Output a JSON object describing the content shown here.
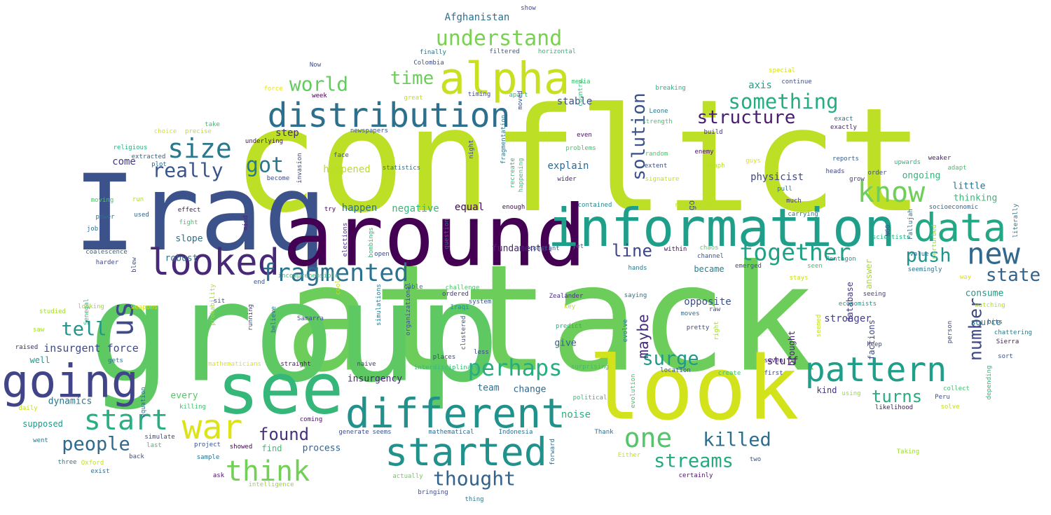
{
  "words": [
    {
      "t": "conflict",
      "c": "#bddf26",
      "a": 0
    },
    {
      "t": "attack",
      "c": "#6ccd5a",
      "a": 0
    },
    {
      "t": "group",
      "c": "#5ec962",
      "a": 0
    },
    {
      "t": "Iraq",
      "c": "#3b528b",
      "a": 0
    },
    {
      "t": "around",
      "c": "#440154",
      "a": 0
    },
    {
      "t": "look",
      "c": "#d2e21b",
      "a": 0
    },
    {
      "t": "see",
      "c": "#35b779",
      "a": 0
    },
    {
      "t": "information",
      "c": "#1f9e89",
      "a": 0
    },
    {
      "t": "alpha",
      "c": "#c8e020",
      "a": 0
    },
    {
      "t": "distribution",
      "c": "#2d708e",
      "a": 0
    },
    {
      "t": "different",
      "c": "#21918c",
      "a": 0
    },
    {
      "t": "data",
      "c": "#22a884",
      "a": 0
    },
    {
      "t": "looked",
      "c": "#482878",
      "a": 0
    },
    {
      "t": "going",
      "c": "#414487",
      "a": 0
    },
    {
      "t": "started",
      "c": "#21918c",
      "a": 0
    },
    {
      "t": "pattern",
      "c": "#1f9e89",
      "a": 0
    },
    {
      "t": "war",
      "c": "#dde318",
      "a": 0
    },
    {
      "t": "start",
      "c": "#29af7f",
      "a": 0
    },
    {
      "t": "new",
      "c": "#31688e",
      "a": 0
    },
    {
      "t": "one",
      "c": "#54c568",
      "a": 0
    },
    {
      "t": "think",
      "c": "#73d056",
      "a": 0
    },
    {
      "t": "fragmented",
      "c": "#2c728e",
      "a": 0
    },
    {
      "t": "know",
      "c": "#6ece58",
      "a": 0
    },
    {
      "t": "understand",
      "c": "#7ad151",
      "a": 0
    },
    {
      "t": "us",
      "c": "#3e4a89",
      "a": 90
    },
    {
      "t": "size",
      "c": "#2a788e",
      "a": 0
    },
    {
      "t": "together",
      "c": "#1fa187",
      "a": 0
    },
    {
      "t": "perhaps",
      "c": "#26ad81",
      "a": 0
    },
    {
      "t": "time",
      "c": "#6ccd5a",
      "a": 0
    },
    {
      "t": "world",
      "c": "#63cb5f",
      "a": 0
    },
    {
      "t": "got",
      "c": "#2a788e",
      "a": 0
    },
    {
      "t": "really",
      "c": "#3a548c",
      "a": 0
    },
    {
      "t": "people",
      "c": "#306a8e",
      "a": 0
    },
    {
      "t": "streams",
      "c": "#24aa83",
      "a": 0
    },
    {
      "t": "thought",
      "c": "#33638d",
      "a": 0
    },
    {
      "t": "something",
      "c": "#25ac82",
      "a": 0
    },
    {
      "t": "structure",
      "c": "#481d6f",
      "a": 0
    },
    {
      "t": "solution",
      "c": "#3b528b",
      "a": 90
    },
    {
      "t": "killed",
      "c": "#2e6d8e",
      "a": 0
    },
    {
      "t": "surge",
      "c": "#1f998a",
      "a": 0
    },
    {
      "t": "push",
      "c": "#20938c",
      "a": 0
    },
    {
      "t": "state",
      "c": "#33638d",
      "a": 0
    },
    {
      "t": "number",
      "c": "#3e4989",
      "a": 90
    },
    {
      "t": "tell",
      "c": "#1f968b",
      "a": 0
    },
    {
      "t": "line",
      "c": "#3f4788",
      "a": 0
    },
    {
      "t": "found",
      "c": "#46327e",
      "a": 0
    },
    {
      "t": "turns",
      "c": "#27ad81",
      "a": 0
    },
    {
      "t": "maybe",
      "c": "#472d7b",
      "a": 90
    },
    {
      "t": "insurgent force",
      "c": "#3e4989",
      "a": 0
    },
    {
      "t": "Afghanistan",
      "c": "#2c718e",
      "a": 0
    },
    {
      "t": "fundamental",
      "c": "#482475",
      "a": 0
    },
    {
      "t": "insurgency",
      "c": "#482475",
      "a": 0
    },
    {
      "t": "stuff",
      "c": "#481a6c",
      "a": 0
    },
    {
      "t": "physicist",
      "c": "#3f4788",
      "a": 0
    },
    {
      "t": "stronger",
      "c": "#433e85",
      "a": 0
    },
    {
      "t": "opposite",
      "c": "#3c508b",
      "a": 0
    },
    {
      "t": "explain",
      "c": "#31688e",
      "a": 0
    },
    {
      "t": "stable",
      "c": "#3b528b",
      "a": 0
    },
    {
      "t": "negative",
      "c": "#35b779",
      "a": 0
    },
    {
      "t": "equal",
      "c": "#450457",
      "a": 0
    },
    {
      "t": "happen",
      "c": "#2d708e",
      "a": 0
    },
    {
      "t": "happened",
      "c": "#bade28",
      "a": 0
    },
    {
      "t": "noise",
      "c": "#2db27d",
      "a": 0
    },
    {
      "t": "source",
      "c": "#26828e",
      "a": 0
    },
    {
      "t": "consume",
      "c": "#1f9a8a",
      "a": 0
    },
    {
      "t": "thinking",
      "c": "#3aba76",
      "a": 0
    },
    {
      "t": "little",
      "c": "#2c728e",
      "a": 0
    },
    {
      "t": "ongoing",
      "c": "#31b57b",
      "a": 0
    },
    {
      "t": "axis",
      "c": "#1fa088",
      "a": 0
    },
    {
      "t": "step",
      "c": "#46307e",
      "a": 0
    },
    {
      "t": "come",
      "c": "#443a83",
      "a": 0
    },
    {
      "t": "dynamics",
      "c": "#2a768e",
      "a": 0
    },
    {
      "t": "supposed",
      "c": "#1f988b",
      "a": 0
    },
    {
      "t": "well",
      "c": "#1e9c89",
      "a": 0
    },
    {
      "t": "every",
      "c": "#58c765",
      "a": 0
    },
    {
      "t": "change",
      "c": "#31678e",
      "a": 0
    },
    {
      "t": "team",
      "c": "#2d718e",
      "a": 0
    },
    {
      "t": "give",
      "c": "#355f8d",
      "a": 0
    },
    {
      "t": "became",
      "c": "#277f8e",
      "a": 0
    },
    {
      "t": "slope",
      "c": "#2d708e",
      "a": 0
    },
    {
      "t": "robust",
      "c": "#2a778e",
      "a": 0
    },
    {
      "t": "process",
      "c": "#33638d",
      "a": 0
    },
    {
      "t": "find",
      "c": "#40bd72",
      "a": 0
    },
    {
      "t": "kind",
      "c": "#463480",
      "a": 0
    },
    {
      "t": "factions",
      "c": "#3f4889",
      "a": 90
    },
    {
      "t": "answer",
      "c": "#a8db34",
      "a": 90
    },
    {
      "t": "database",
      "c": "#443983",
      "a": 90
    },
    {
      "t": "brought",
      "c": "#482071",
      "a": 90
    },
    {
      "t": "go",
      "c": "#3d4e8a",
      "a": 90
    },
    {
      "t": "Now",
      "c": "#3e4c8a",
      "a": 0
    },
    {
      "t": "Colombia",
      "c": "#3c4f8a",
      "a": 0
    },
    {
      "t": "finally",
      "c": "#2c728e",
      "a": 0
    },
    {
      "t": "horizontal",
      "c": "#34b679",
      "a": 0
    },
    {
      "t": "filtered",
      "c": "#375b8d",
      "a": 0
    },
    {
      "t": "show",
      "c": "#3e4a89",
      "a": 0
    },
    {
      "t": "special",
      "c": "#d8e219",
      "a": 0
    },
    {
      "t": "continue",
      "c": "#3d4e8a",
      "a": 0
    },
    {
      "t": "media",
      "c": "#42be71",
      "a": 0
    },
    {
      "t": "force",
      "c": "#e5e419",
      "a": 0
    },
    {
      "t": "week",
      "c": "#440154",
      "a": 0
    },
    {
      "t": "great",
      "c": "#c0df25",
      "a": 0
    },
    {
      "t": "timing",
      "c": "#3f4788",
      "a": 0
    },
    {
      "t": "apart",
      "c": "#31b57b",
      "a": 0
    },
    {
      "t": "breaking",
      "c": "#2ab07f",
      "a": 0
    },
    {
      "t": "Leone",
      "c": "#2a768e",
      "a": 0
    },
    {
      "t": "exact",
      "c": "#2c738e",
      "a": 0
    },
    {
      "t": "exactly",
      "c": "#482677",
      "a": 0
    },
    {
      "t": "strength",
      "c": "#4ac16d",
      "a": 0
    },
    {
      "t": "take",
      "c": "#40bd72",
      "a": 0
    },
    {
      "t": "choice",
      "c": "#dae319",
      "a": 0
    },
    {
      "t": "precise",
      "c": "#c5e021",
      "a": 0
    },
    {
      "t": "underlying",
      "c": "#471063",
      "a": 0
    },
    {
      "t": "newspapers",
      "c": "#3b528b",
      "a": 0
    },
    {
      "t": "even",
      "c": "#460b5e",
      "a": 0
    },
    {
      "t": "build",
      "c": "#46307e",
      "a": 0
    },
    {
      "t": "problems",
      "c": "#4ac16d",
      "a": 0
    },
    {
      "t": "random",
      "c": "#52c569",
      "a": 0
    },
    {
      "t": "enemy",
      "c": "#481769",
      "a": 0
    },
    {
      "t": "reports",
      "c": "#355e8d",
      "a": 0
    },
    {
      "t": "religious",
      "c": "#2ab07f",
      "a": 0
    },
    {
      "t": "extracted",
      "c": "#33628d",
      "a": 0
    },
    {
      "t": "face",
      "c": "#3a548c",
      "a": 0
    },
    {
      "t": "statistics",
      "c": "#2c728e",
      "a": 0
    },
    {
      "t": "extent",
      "c": "#3c4f8a",
      "a": 0
    },
    {
      "t": "graph",
      "c": "#b5de2b",
      "a": 0
    },
    {
      "t": "upwards",
      "c": "#2fb47c",
      "a": 0
    },
    {
      "t": "weaker",
      "c": "#481b6d",
      "a": 0
    },
    {
      "t": "guys",
      "c": "#dde318",
      "a": 0
    },
    {
      "t": "adapt",
      "c": "#44bf70",
      "a": 0
    },
    {
      "t": "plot",
      "c": "#31688e",
      "a": 0
    },
    {
      "t": "become",
      "c": "#3e4c8a",
      "a": 0
    },
    {
      "t": "heads",
      "c": "#3f4788",
      "a": 0
    },
    {
      "t": "order",
      "c": "#3d4d8a",
      "a": 0
    },
    {
      "t": "wider",
      "c": "#482475",
      "a": 0
    },
    {
      "t": "signature",
      "c": "#c2df23",
      "a": 0
    },
    {
      "t": "grow",
      "c": "#46337f",
      "a": 0
    },
    {
      "t": "moving",
      "c": "#50c46a",
      "a": 0
    },
    {
      "t": "run",
      "c": "#addc30",
      "a": 0
    },
    {
      "t": "pull",
      "c": "#2a788e",
      "a": 0
    },
    {
      "t": "much",
      "c": "#46307e",
      "a": 0
    },
    {
      "t": "try",
      "c": "#440154",
      "a": 0
    },
    {
      "t": "contained",
      "c": "#26828e",
      "a": 0
    },
    {
      "t": "reasonable",
      "c": "#bade28",
      "a": 0
    },
    {
      "t": "socioeconomic",
      "c": "#32648e",
      "a": 0
    },
    {
      "t": "effect",
      "c": "#471365",
      "a": 0
    },
    {
      "t": "fight",
      "c": "#4ac16d",
      "a": 0
    },
    {
      "t": "power",
      "c": "#2e6e8e",
      "a": 0
    },
    {
      "t": "used",
      "c": "#33628d",
      "a": 0
    },
    {
      "t": "job",
      "c": "#2e6d8e",
      "a": 0
    },
    {
      "t": "mind",
      "c": "#482878",
      "a": 90
    },
    {
      "t": "coalescence",
      "c": "#34618d",
      "a": 0
    },
    {
      "t": "harder",
      "c": "#3f4788",
      "a": 0
    },
    {
      "t": "blew",
      "c": "#3c4f8a",
      "a": 90
    },
    {
      "t": "bombings",
      "c": "#35b779",
      "a": 90
    },
    {
      "t": "open",
      "c": "#3e4989",
      "a": 0
    },
    {
      "t": "yet",
      "c": "#32658e",
      "a": 0
    },
    {
      "t": "within",
      "c": "#460a5d",
      "a": 0
    },
    {
      "t": "chaos",
      "c": "#5ec962",
      "a": 0
    },
    {
      "t": "channel",
      "c": "#3a548c",
      "a": 0
    },
    {
      "t": "constant",
      "c": "#38598c",
      "a": 0
    },
    {
      "t": "hands",
      "c": "#2a788e",
      "a": 0
    },
    {
      "t": "emerged",
      "c": "#3e4c8a",
      "a": 0
    },
    {
      "t": "seen",
      "c": "#44bf70",
      "a": 0
    },
    {
      "t": "Pentagon",
      "c": "#21918c",
      "a": 0
    },
    {
      "t": "seemingly",
      "c": "#2d708e",
      "a": 0
    },
    {
      "t": "scientists",
      "c": "#29af7f",
      "a": 0
    },
    {
      "t": "value",
      "c": "#2e6e8e",
      "a": 0
    },
    {
      "t": "way",
      "c": "#dde318",
      "a": 0
    },
    {
      "t": "stays",
      "c": "#cae11f",
      "a": 0
    },
    {
      "t": "seeing",
      "c": "#424086",
      "a": 0
    },
    {
      "t": "end",
      "c": "#3b528b",
      "a": 0
    },
    {
      "t": "incomprehensible",
      "c": "#38b977",
      "a": 0
    },
    {
      "t": "cool",
      "c": "#c2df23",
      "a": 90
    },
    {
      "t": "cable",
      "c": "#2a788e",
      "a": 0
    },
    {
      "t": "challenge",
      "c": "#4ec36b",
      "a": 0
    },
    {
      "t": "Zealander",
      "c": "#46307e",
      "a": 0
    },
    {
      "t": "key",
      "c": "#b8de29",
      "a": 0
    },
    {
      "t": "saying",
      "c": "#2d708e",
      "a": 0
    },
    {
      "t": "economists",
      "c": "#1f9a8a",
      "a": 0
    },
    {
      "t": "watching",
      "c": "#b0dd2f",
      "a": 0
    },
    {
      "t": "bits",
      "c": "#3a548c",
      "a": 0
    },
    {
      "t": "chattering",
      "c": "#277e8e",
      "a": 0
    },
    {
      "t": "Sierra",
      "c": "#48186a",
      "a": 0
    },
    {
      "t": "studied",
      "c": "#a5db36",
      "a": 0
    },
    {
      "t": "looking",
      "c": "#a0da39",
      "a": 0
    },
    {
      "t": "weapons",
      "c": "#dae319",
      "a": 0
    },
    {
      "t": "saw",
      "c": "#a8db34",
      "a": 0
    },
    {
      "t": "raised",
      "c": "#482475",
      "a": 0
    },
    {
      "t": "gets",
      "c": "#2d708e",
      "a": 0
    },
    {
      "t": "mathematicians",
      "c": "#dde318",
      "a": 0
    },
    {
      "t": "straight",
      "c": "#471365",
      "a": 0
    },
    {
      "t": "naive",
      "c": "#453781",
      "a": 0
    },
    {
      "t": "interdisciplinary",
      "c": "#3aba76",
      "a": 0
    },
    {
      "t": "places",
      "c": "#3f4788",
      "a": 0
    },
    {
      "t": "Samarra",
      "c": "#3e4c8a",
      "a": 0
    },
    {
      "t": "less",
      "c": "#3f4788",
      "a": 0
    },
    {
      "t": "system",
      "c": "#3b528b",
      "a": 0
    },
    {
      "t": "ordered",
      "c": "#443983",
      "a": 0
    },
    {
      "t": "Iraqi",
      "c": "#21918c",
      "a": 0
    },
    {
      "t": "predict",
      "c": "#29af7f",
      "a": 0
    },
    {
      "t": "surprising",
      "c": "#3aba76",
      "a": 0
    },
    {
      "t": "political",
      "c": "#3aba76",
      "a": 0
    },
    {
      "t": "moves",
      "c": "#2e6d8e",
      "a": 0
    },
    {
      "t": "raw",
      "c": "#3b528b",
      "a": 0
    },
    {
      "t": "pretty",
      "c": "#3f4788",
      "a": 0
    },
    {
      "t": "location",
      "c": "#3b528b",
      "a": 0
    },
    {
      "t": "create",
      "c": "#44bf70",
      "a": 0
    },
    {
      "t": "seven",
      "c": "#46307e",
      "a": 0
    },
    {
      "t": "first",
      "c": "#3e4989",
      "a": 0
    },
    {
      "t": "keep",
      "c": "#3f4788",
      "a": 0
    },
    {
      "t": "sort",
      "c": "#3b528b",
      "a": 0
    },
    {
      "t": "collect",
      "c": "#44bf70",
      "a": 0
    },
    {
      "t": "using",
      "c": "#95d840",
      "a": 0
    },
    {
      "t": "likelihood",
      "c": "#471365",
      "a": 0
    },
    {
      "t": "Peru",
      "c": "#3b528b",
      "a": 0
    },
    {
      "t": "solve",
      "c": "#bddf26",
      "a": 0
    },
    {
      "t": "Taking",
      "c": "#a0da39",
      "a": 0
    },
    {
      "t": "two",
      "c": "#3b528b",
      "a": 0
    },
    {
      "t": "Thank",
      "c": "#2e6d8e",
      "a": 0
    },
    {
      "t": "Either",
      "c": "#c2df23",
      "a": 0
    },
    {
      "t": "certainly",
      "c": "#471365",
      "a": 0
    },
    {
      "t": "daily",
      "c": "#c2df23",
      "a": 0
    },
    {
      "t": "killing",
      "c": "#44bf70",
      "a": 0
    },
    {
      "t": "went",
      "c": "#2a788e",
      "a": 0
    },
    {
      "t": "simulate",
      "c": "#3f4788",
      "a": 0
    },
    {
      "t": "last",
      "c": "#44bf70",
      "a": 0
    },
    {
      "t": "project",
      "c": "#3b528b",
      "a": 0
    },
    {
      "t": "showed",
      "c": "#440154",
      "a": 0
    },
    {
      "t": "three",
      "c": "#2a788e",
      "a": 0
    },
    {
      "t": "Oxford",
      "c": "#c2df23",
      "a": 0
    },
    {
      "t": "back",
      "c": "#3b528b",
      "a": 0
    },
    {
      "t": "sample",
      "c": "#2d708e",
      "a": 0
    },
    {
      "t": "exist",
      "c": "#2e6d8e",
      "a": 0
    },
    {
      "t": "ask",
      "c": "#471365",
      "a": 0
    },
    {
      "t": "intelligence",
      "c": "#95d840",
      "a": 0
    },
    {
      "t": "actually",
      "c": "#6ccd5a",
      "a": 0
    },
    {
      "t": "bringing",
      "c": "#3f4788",
      "a": 0
    },
    {
      "t": "thing",
      "c": "#2a788e",
      "a": 0
    },
    {
      "t": "mathematical",
      "c": "#31688e",
      "a": 0
    },
    {
      "t": "Indonesia",
      "c": "#2e6d8e",
      "a": 0
    },
    {
      "t": "generate",
      "c": "#3e4989",
      "a": 0
    },
    {
      "t": "seems",
      "c": "#3b528b",
      "a": 0
    },
    {
      "t": "coming",
      "c": "#471365",
      "a": 0
    },
    {
      "t": "equation",
      "c": "#2e6d8e",
      "a": 90
    },
    {
      "t": "Senegal",
      "c": "#35b779",
      "a": 90
    },
    {
      "t": "probability",
      "c": "#a0da39",
      "a": 90
    },
    {
      "t": "running",
      "c": "#3f4788",
      "a": 90
    },
    {
      "t": "believe",
      "c": "#2d708e",
      "a": 90
    },
    {
      "t": "sit",
      "c": "#3b528b",
      "a": 0
    },
    {
      "t": "invasion",
      "c": "#3e4989",
      "a": 90
    },
    {
      "t": "elections",
      "c": "#46307e",
      "a": 90
    },
    {
      "t": "simulations",
      "c": "#2a788e",
      "a": 90
    },
    {
      "t": "organizational",
      "c": "#3b528b",
      "a": 90
    },
    {
      "t": "question",
      "c": "#2e6d8e",
      "a": 90
    },
    {
      "t": "night",
      "c": "#3e4989",
      "a": 90
    },
    {
      "t": "fragmentation",
      "c": "#2a788e",
      "a": 90
    },
    {
      "t": "recreate",
      "c": "#35b779",
      "a": 90
    },
    {
      "t": "happening",
      "c": "#44bf70",
      "a": 90
    },
    {
      "t": "moved",
      "c": "#3b528b",
      "a": 90
    },
    {
      "t": "country",
      "c": "#3aba76",
      "a": 90
    },
    {
      "t": "clustered",
      "c": "#3b528b",
      "a": 90
    },
    {
      "t": "forward",
      "c": "#2e6d8e",
      "a": 90
    },
    {
      "t": "evolution",
      "c": "#44bf70",
      "a": 90
    },
    {
      "t": "evolve",
      "c": "#2a788e",
      "a": 90
    },
    {
      "t": "right",
      "c": "#a0da39",
      "a": 90
    },
    {
      "t": "seemed",
      "c": "#c2df23",
      "a": 90
    },
    {
      "t": "person",
      "c": "#3e4989",
      "a": 90
    },
    {
      "t": "depending",
      "c": "#35b779",
      "a": 90
    },
    {
      "t": "Fallujah",
      "c": "#2e6d8e",
      "a": 90
    },
    {
      "t": "NGO",
      "c": "#3b528b",
      "a": 90
    },
    {
      "t": "perturbed",
      "c": "#95d840",
      "a": 90
    },
    {
      "t": "literally",
      "c": "#2a788e",
      "a": 90
    },
    {
      "t": "carrying",
      "c": "#2c728e",
      "a": 0
    },
    {
      "t": "enough",
      "c": "#440154",
      "a": 0
    }
  ]
}
